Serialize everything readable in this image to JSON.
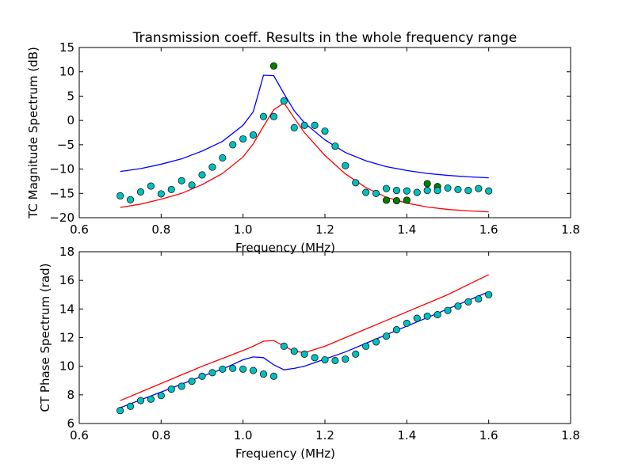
{
  "figure_title": "Transmission coeff. Results in the whole frequency range",
  "colors": {
    "blue_line": "#0000ff",
    "red_line": "#ff0000",
    "cyan_marker": "#00bfbf",
    "green_marker": "#007f00"
  },
  "chart_data": [
    {
      "type": "line",
      "title": "Transmission coeff. Results in the whole frequency range",
      "xlabel": "Frequency (MHz)",
      "ylabel": "TC Magnitude Spectrum (dB)",
      "xlim": [
        0.6,
        1.8
      ],
      "ylim": [
        -20,
        15
      ],
      "xticks": [
        "0.6",
        "0.8",
        "1.0",
        "1.2",
        "1.4",
        "1.6",
        "1.8"
      ],
      "yticks": [
        "−20",
        "−15",
        "−10",
        "−5",
        "0",
        "5",
        "10",
        "15"
      ],
      "xtick_values": [
        0.6,
        0.8,
        1.0,
        1.2,
        1.4,
        1.6,
        1.8
      ],
      "ytick_values": [
        -20,
        -15,
        -10,
        -5,
        0,
        5,
        10,
        15
      ],
      "grid": false,
      "lines": [
        {
          "color": "#0000ff",
          "x": [
            0.7,
            0.75,
            0.8,
            0.85,
            0.9,
            0.95,
            1.0,
            1.025,
            1.05,
            1.075,
            1.1,
            1.125,
            1.15,
            1.2,
            1.25,
            1.3,
            1.35,
            1.4,
            1.45,
            1.5,
            1.55,
            1.6
          ],
          "y": [
            -10.5,
            -9.9,
            -9.0,
            -7.9,
            -6.3,
            -4.3,
            -1.0,
            1.8,
            9.3,
            9.2,
            5.5,
            2.0,
            -0.5,
            -4.0,
            -6.6,
            -8.3,
            -9.5,
            -10.3,
            -10.9,
            -11.3,
            -11.6,
            -11.8
          ]
        },
        {
          "color": "#ff0000",
          "x": [
            0.7,
            0.75,
            0.8,
            0.85,
            0.9,
            0.95,
            1.0,
            1.025,
            1.05,
            1.075,
            1.1,
            1.125,
            1.15,
            1.2,
            1.25,
            1.3,
            1.35,
            1.4,
            1.45,
            1.5,
            1.55,
            1.6
          ],
          "y": [
            -17.9,
            -17.2,
            -16.2,
            -15.0,
            -13.2,
            -10.9,
            -7.5,
            -4.8,
            -1.2,
            2.2,
            3.6,
            0.5,
            -2.5,
            -7.2,
            -11.0,
            -13.8,
            -15.8,
            -17.0,
            -17.8,
            -18.3,
            -18.6,
            -18.8
          ]
        }
      ],
      "markers": [
        {
          "color": "#007f00",
          "x": [
            1.075,
            1.35,
            1.375,
            1.4,
            1.45,
            1.475
          ],
          "y": [
            11.2,
            -16.4,
            -16.5,
            -16.4,
            -13.0,
            -13.6
          ]
        },
        {
          "color": "#00bfbf",
          "x": [
            0.7,
            0.725,
            0.75,
            0.775,
            0.8,
            0.825,
            0.85,
            0.875,
            0.9,
            0.925,
            0.95,
            0.975,
            1.0,
            1.025,
            1.05,
            1.075,
            1.1,
            1.125,
            1.15,
            1.175,
            1.2,
            1.225,
            1.25,
            1.275,
            1.3,
            1.325,
            1.35,
            1.375,
            1.4,
            1.425,
            1.45,
            1.475,
            1.5,
            1.525,
            1.55,
            1.575,
            1.6
          ],
          "y": [
            -15.5,
            -16.3,
            -14.7,
            -13.5,
            -15.1,
            -14.2,
            -12.4,
            -13.3,
            -11.2,
            -9.6,
            -7.7,
            -5.0,
            -3.8,
            -3.0,
            0.8,
            0.8,
            4.0,
            -1.5,
            -1.0,
            -1.0,
            -2.2,
            -5.3,
            -9.3,
            -12.8,
            -14.8,
            -15.0,
            -14.0,
            -14.4,
            -14.5,
            -14.8,
            -14.4,
            -14.4,
            -13.9,
            -14.2,
            -14.4,
            -14.0,
            -14.5
          ]
        }
      ]
    },
    {
      "type": "line",
      "title": "",
      "xlabel": "Frequency (MHz)",
      "ylabel": "CT Phase Spectrum (rad)",
      "xlim": [
        0.6,
        1.8
      ],
      "ylim": [
        6,
        18
      ],
      "xticks": [
        "0.6",
        "0.8",
        "1.0",
        "1.2",
        "1.4",
        "1.6",
        "1.8"
      ],
      "yticks": [
        "6",
        "8",
        "10",
        "12",
        "14",
        "16",
        "18"
      ],
      "xtick_values": [
        0.6,
        0.8,
        1.0,
        1.2,
        1.4,
        1.6,
        1.8
      ],
      "ytick_values": [
        6,
        8,
        10,
        12,
        14,
        16,
        18
      ],
      "grid": false,
      "lines": [
        {
          "color": "#ff0000",
          "x": [
            0.7,
            0.75,
            0.8,
            0.85,
            0.9,
            0.95,
            1.0,
            1.025,
            1.05,
            1.075,
            1.1,
            1.125,
            1.15,
            1.2,
            1.25,
            1.3,
            1.35,
            1.4,
            1.45,
            1.5,
            1.55,
            1.6
          ],
          "y": [
            7.6,
            8.2,
            8.8,
            9.4,
            10.0,
            10.55,
            11.1,
            11.4,
            11.75,
            11.8,
            11.4,
            11.05,
            10.95,
            11.4,
            12.0,
            12.6,
            13.2,
            13.8,
            14.4,
            15.0,
            15.7,
            16.4
          ]
        },
        {
          "color": "#0000ff",
          "x": [
            0.7,
            0.75,
            0.8,
            0.85,
            0.9,
            0.95,
            1.0,
            1.025,
            1.05,
            1.075,
            1.1,
            1.125,
            1.15,
            1.2,
            1.25,
            1.3,
            1.35,
            1.4,
            1.45,
            1.5,
            1.55,
            1.6
          ],
          "y": [
            7.1,
            7.65,
            8.2,
            8.75,
            9.3,
            9.8,
            10.45,
            10.65,
            10.6,
            10.1,
            9.75,
            9.85,
            10.0,
            10.5,
            11.0,
            11.6,
            12.2,
            12.8,
            13.4,
            14.0,
            14.6,
            15.2
          ]
        }
      ],
      "markers": [
        {
          "color": "#00bfbf",
          "x": [
            0.7,
            0.725,
            0.75,
            0.775,
            0.8,
            0.825,
            0.85,
            0.875,
            0.9,
            0.925,
            0.95,
            0.975,
            1.0,
            1.025,
            1.05,
            1.075,
            1.1,
            1.125,
            1.15,
            1.175,
            1.2,
            1.225,
            1.25,
            1.275,
            1.3,
            1.325,
            1.35,
            1.375,
            1.4,
            1.425,
            1.45,
            1.475,
            1.5,
            1.525,
            1.55,
            1.575,
            1.6
          ],
          "y": [
            6.9,
            7.2,
            7.6,
            7.7,
            7.95,
            8.4,
            8.6,
            8.95,
            9.3,
            9.55,
            9.8,
            9.85,
            9.8,
            9.7,
            9.45,
            9.3,
            11.4,
            11.05,
            10.85,
            10.6,
            10.45,
            10.4,
            10.5,
            10.85,
            11.4,
            11.7,
            12.1,
            12.55,
            13.0,
            13.35,
            13.5,
            13.6,
            13.9,
            14.2,
            14.5,
            14.7,
            15.0
          ]
        }
      ]
    }
  ]
}
